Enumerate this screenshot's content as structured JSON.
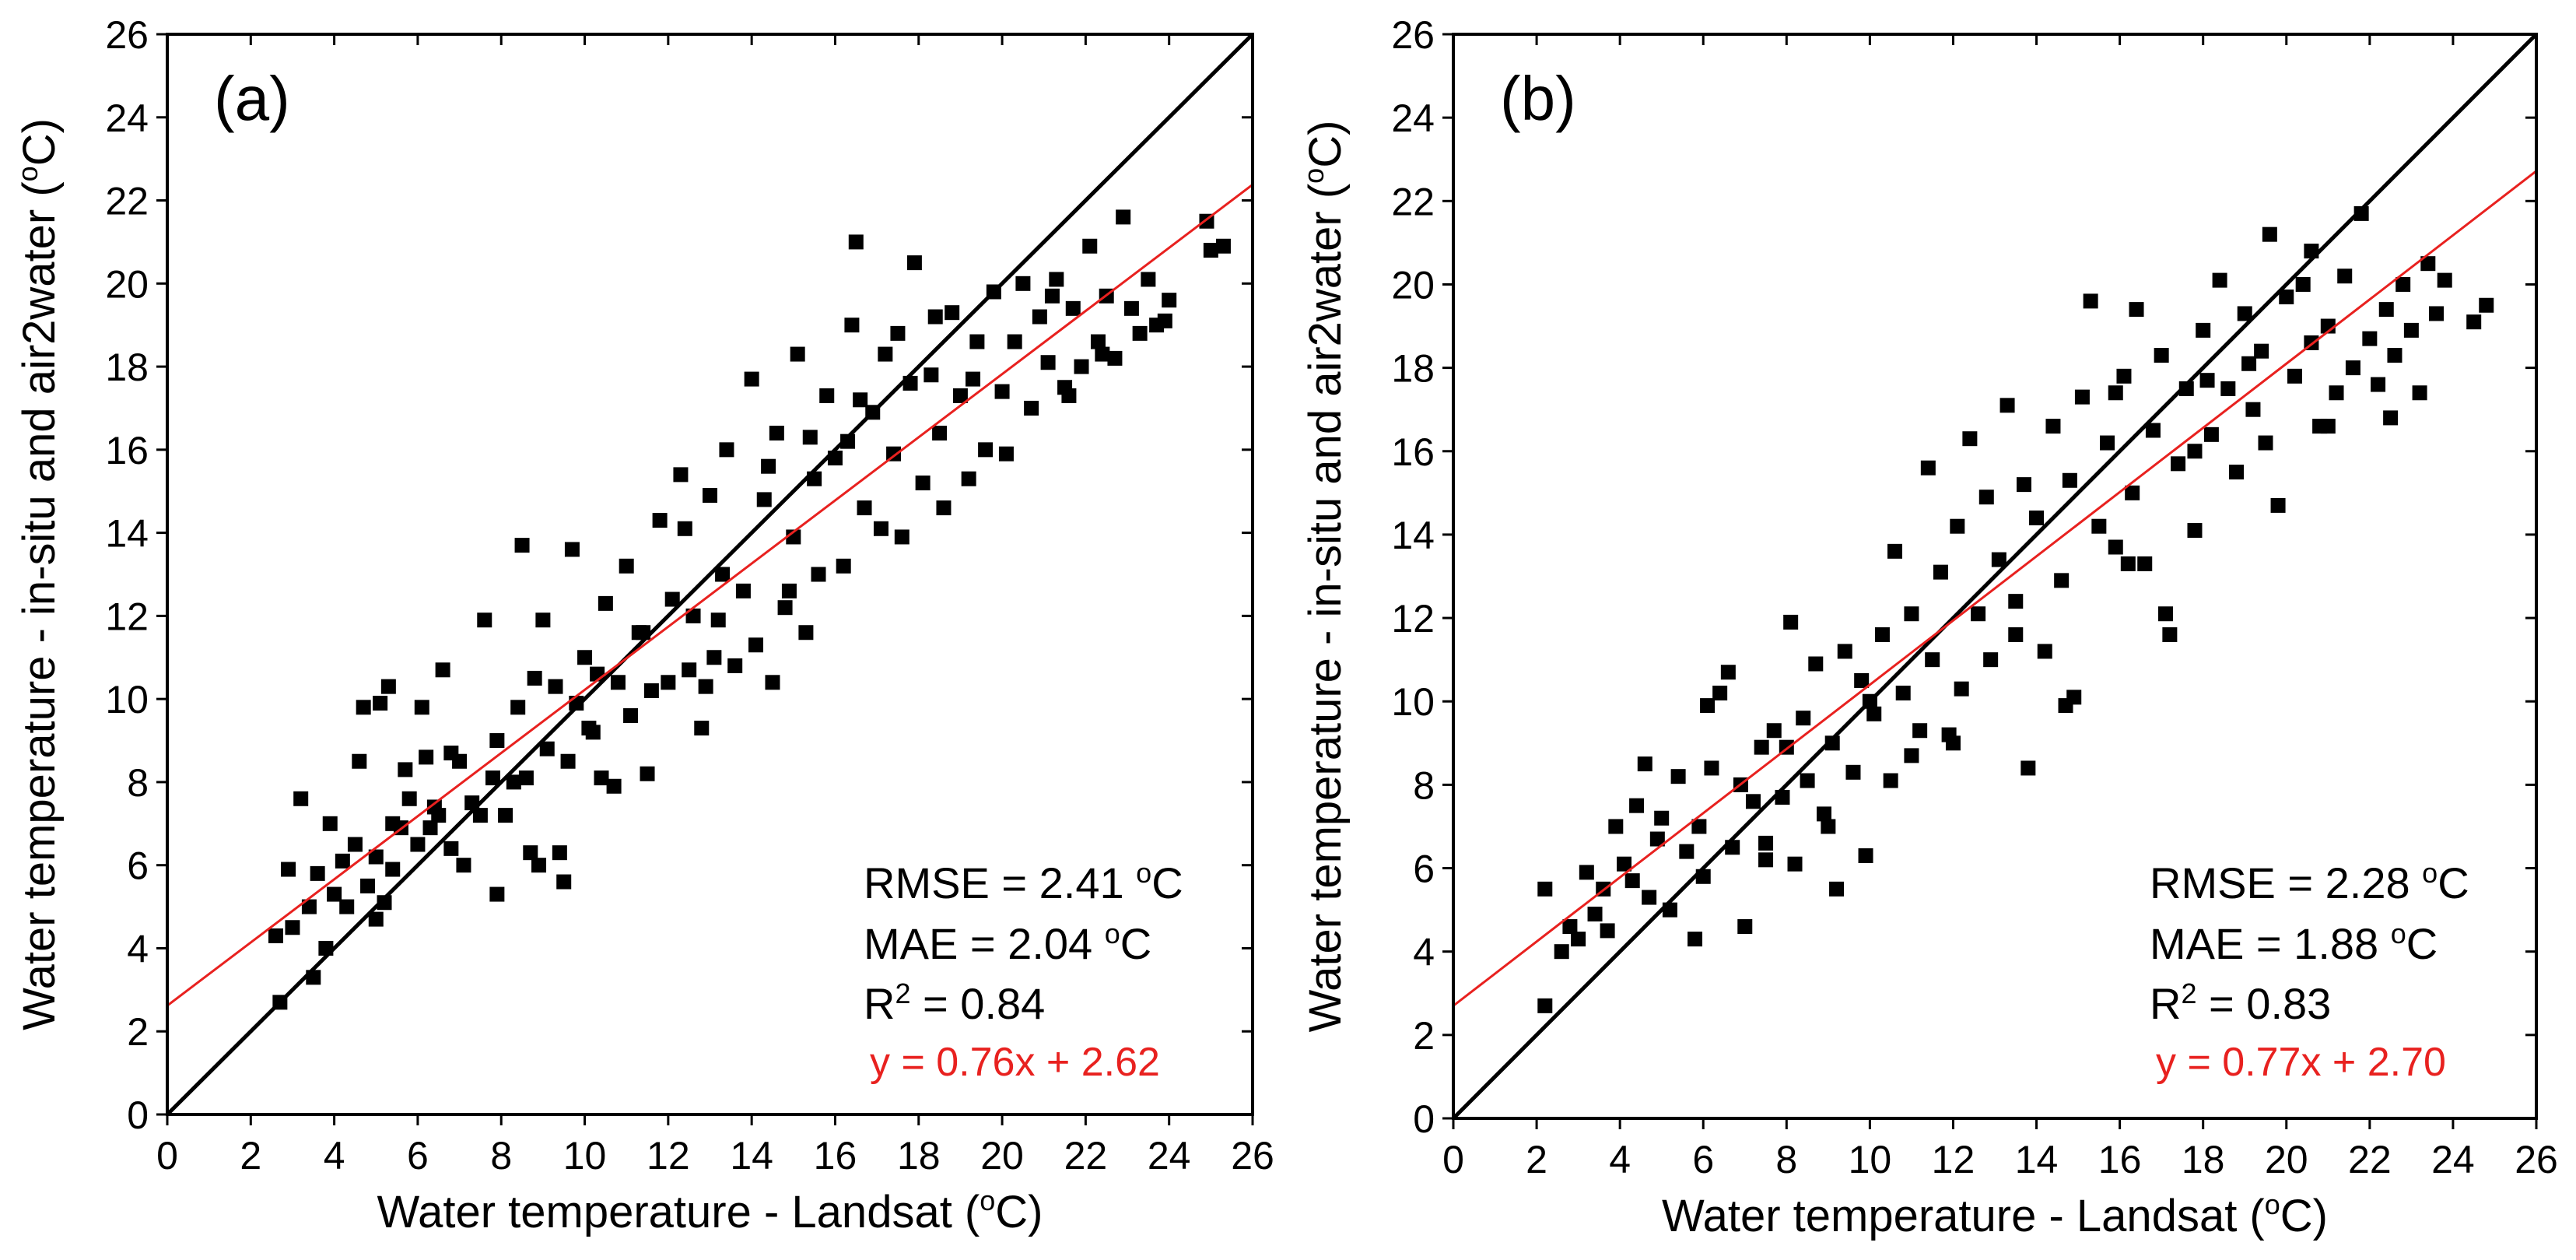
{
  "colors": {
    "points": "#000000",
    "one_to_one": "#000000",
    "fit": "#e8211f",
    "axes": "#000000"
  },
  "chart_data": [
    {
      "type": "scatter",
      "panel": "(a)",
      "xlabel_main": "Water temperature - Landsat (",
      "xlabel_sup": "o",
      "xlabel_end": "C)",
      "ylabel_main": "Water temperature - in-situ and air2water (",
      "ylabel_sup": "o",
      "ylabel_end": "C)",
      "xlim": [
        0,
        26
      ],
      "ylim": [
        0,
        26
      ],
      "xticks": [
        "0",
        "2",
        "4",
        "6",
        "8",
        "10",
        "12",
        "14",
        "16",
        "18",
        "20",
        "22",
        "24",
        "26"
      ],
      "yticks": [
        "0",
        "2",
        "4",
        "6",
        "8",
        "10",
        "12",
        "14",
        "16",
        "18",
        "20",
        "22",
        "24",
        "26"
      ],
      "one_to_one_line": {
        "slope": 1,
        "intercept": 0
      },
      "fit_line": {
        "slope": 0.76,
        "intercept": 2.62
      },
      "stats": {
        "rmse_text": "RMSE = 2.41 ",
        "rmse_sup": "o",
        "rmse_unit": "C",
        "mae_text": "MAE = 2.04 ",
        "mae_sup": "o",
        "mae_unit": "C",
        "r2_label": "R",
        "r2_sup": "2",
        "r2_value": " = 0.84",
        "equation": "y = 0.76x + 2.62"
      },
      "points": [
        [
          2.6,
          4.3
        ],
        [
          2.7,
          2.7
        ],
        [
          2.9,
          5.9
        ],
        [
          3.0,
          4.5
        ],
        [
          3.2,
          7.6
        ],
        [
          3.4,
          5.0
        ],
        [
          3.5,
          3.3
        ],
        [
          3.6,
          5.8
        ],
        [
          3.8,
          4.0
        ],
        [
          3.9,
          7.0
        ],
        [
          4.0,
          5.3
        ],
        [
          4.2,
          6.1
        ],
        [
          4.3,
          5.0
        ],
        [
          4.5,
          6.5
        ],
        [
          4.6,
          8.5
        ],
        [
          4.7,
          9.8
        ],
        [
          4.8,
          5.5
        ],
        [
          5.0,
          4.7
        ],
        [
          5.0,
          6.2
        ],
        [
          5.1,
          9.9
        ],
        [
          5.2,
          5.1
        ],
        [
          5.3,
          10.3
        ],
        [
          5.4,
          7.0
        ],
        [
          5.6,
          6.9
        ],
        [
          5.7,
          8.3
        ],
        [
          5.8,
          7.6
        ],
        [
          6.0,
          6.5
        ],
        [
          6.1,
          9.8
        ],
        [
          6.2,
          8.6
        ],
        [
          6.3,
          6.9
        ],
        [
          6.5,
          7.2
        ],
        [
          6.6,
          10.7
        ],
        [
          6.8,
          6.4
        ],
        [
          7.0,
          8.5
        ],
        [
          7.1,
          6.0
        ],
        [
          7.3,
          7.5
        ],
        [
          7.5,
          7.2
        ],
        [
          7.6,
          11.9
        ],
        [
          7.8,
          8.1
        ],
        [
          7.9,
          9.0
        ],
        [
          8.1,
          7.2
        ],
        [
          8.3,
          8.0
        ],
        [
          8.4,
          9.8
        ],
        [
          8.5,
          13.7
        ],
        [
          8.7,
          6.3
        ],
        [
          8.8,
          10.5
        ],
        [
          9.0,
          11.9
        ],
        [
          9.1,
          8.8
        ],
        [
          9.3,
          10.3
        ],
        [
          9.4,
          6.3
        ],
        [
          9.6,
          8.5
        ],
        [
          9.7,
          13.6
        ],
        [
          9.8,
          9.9
        ],
        [
          10.0,
          11.0
        ],
        [
          10.1,
          9.3
        ],
        [
          10.3,
          10.6
        ],
        [
          10.4,
          8.1
        ],
        [
          10.5,
          12.3
        ],
        [
          10.7,
          7.9
        ],
        [
          10.8,
          10.4
        ],
        [
          11.0,
          13.2
        ],
        [
          11.1,
          9.6
        ],
        [
          11.3,
          11.6
        ],
        [
          11.5,
          8.2
        ],
        [
          11.6,
          10.2
        ],
        [
          11.8,
          14.3
        ],
        [
          12.0,
          10.4
        ],
        [
          12.1,
          12.4
        ],
        [
          12.3,
          15.4
        ],
        [
          12.5,
          10.7
        ],
        [
          12.6,
          12.0
        ],
        [
          12.8,
          9.3
        ],
        [
          13.0,
          14.9
        ],
        [
          13.1,
          11.0
        ],
        [
          13.3,
          13.0
        ],
        [
          13.4,
          16.0
        ],
        [
          13.6,
          10.8
        ],
        [
          13.8,
          12.6
        ],
        [
          14.0,
          17.7
        ],
        [
          14.1,
          11.3
        ],
        [
          14.3,
          14.8
        ],
        [
          14.5,
          10.4
        ],
        [
          14.6,
          16.4
        ],
        [
          14.8,
          12.2
        ],
        [
          15.0,
          13.9
        ],
        [
          15.1,
          18.3
        ],
        [
          15.3,
          11.6
        ],
        [
          15.5,
          15.3
        ],
        [
          15.6,
          13.0
        ],
        [
          15.8,
          17.3
        ],
        [
          16.0,
          15.8
        ],
        [
          16.2,
          13.2
        ],
        [
          16.4,
          19.0
        ],
        [
          16.5,
          21.0
        ],
        [
          16.7,
          14.6
        ],
        [
          16.9,
          16.9
        ],
        [
          17.1,
          14.1
        ],
        [
          17.2,
          18.3
        ],
        [
          17.4,
          15.9
        ],
        [
          17.6,
          13.9
        ],
        [
          17.8,
          17.6
        ],
        [
          17.9,
          20.5
        ],
        [
          18.1,
          15.2
        ],
        [
          18.3,
          17.8
        ],
        [
          18.5,
          16.4
        ],
        [
          18.6,
          14.6
        ],
        [
          18.8,
          19.3
        ],
        [
          19.0,
          17.3
        ],
        [
          19.2,
          15.3
        ],
        [
          19.4,
          18.6
        ],
        [
          19.6,
          16.0
        ],
        [
          19.8,
          19.8
        ],
        [
          20.0,
          17.4
        ],
        [
          20.1,
          15.9
        ],
        [
          20.3,
          18.6
        ],
        [
          20.5,
          20.0
        ],
        [
          20.7,
          17.0
        ],
        [
          20.9,
          19.2
        ],
        [
          21.1,
          18.1
        ],
        [
          21.3,
          20.1
        ],
        [
          21.5,
          17.5
        ],
        [
          21.7,
          19.4
        ],
        [
          21.9,
          18.0
        ],
        [
          22.1,
          20.9
        ],
        [
          22.3,
          18.6
        ],
        [
          22.5,
          19.7
        ],
        [
          22.7,
          18.2
        ],
        [
          22.9,
          21.6
        ],
        [
          23.1,
          19.4
        ],
        [
          23.3,
          18.8
        ],
        [
          23.5,
          20.1
        ],
        [
          23.7,
          19.0
        ],
        [
          24.0,
          19.6
        ],
        [
          24.9,
          21.5
        ],
        [
          25.0,
          20.8
        ],
        [
          25.3,
          20.9
        ],
        [
          6.8,
          8.7
        ],
        [
          8.9,
          6.0
        ],
        [
          9.5,
          5.6
        ],
        [
          7.9,
          5.3
        ],
        [
          11.4,
          11.6
        ],
        [
          12.4,
          14.1
        ],
        [
          13.2,
          11.9
        ],
        [
          14.4,
          15.6
        ],
        [
          15.4,
          16.3
        ],
        [
          16.6,
          17.2
        ],
        [
          17.5,
          18.8
        ],
        [
          18.4,
          19.2
        ],
        [
          19.3,
          17.7
        ],
        [
          21.2,
          19.7
        ],
        [
          21.6,
          17.3
        ],
        [
          22.4,
          18.3
        ],
        [
          23.9,
          19.1
        ],
        [
          5.4,
          5.9
        ],
        [
          6.4,
          7.4
        ],
        [
          8.6,
          8.1
        ],
        [
          10.2,
          9.2
        ],
        [
          12.9,
          10.3
        ],
        [
          14.9,
          12.6
        ],
        [
          16.3,
          16.2
        ]
      ]
    },
    {
      "type": "scatter",
      "panel": "(b)",
      "xlabel_main": "Water temperature - Landsat (",
      "xlabel_sup": "o",
      "xlabel_end": "C)",
      "ylabel_main": "Water temperature - in-situ and air2water (",
      "ylabel_sup": "o",
      "ylabel_end": "C)",
      "xlim": [
        0,
        26
      ],
      "ylim": [
        0,
        26
      ],
      "xticks": [
        "0",
        "2",
        "4",
        "6",
        "8",
        "10",
        "12",
        "14",
        "16",
        "18",
        "20",
        "22",
        "24",
        "26"
      ],
      "yticks": [
        "0",
        "2",
        "4",
        "6",
        "8",
        "10",
        "12",
        "14",
        "16",
        "18",
        "20",
        "22",
        "24",
        "26"
      ],
      "one_to_one_line": {
        "slope": 1,
        "intercept": 0
      },
      "fit_line": {
        "slope": 0.77,
        "intercept": 2.7
      },
      "stats": {
        "rmse_text": "RMSE = 2.28 ",
        "rmse_sup": "o",
        "rmse_unit": "C",
        "mae_text": "MAE = 1.88 ",
        "mae_sup": "o",
        "mae_unit": "C",
        "r2_label": "R",
        "r2_sup": "2",
        "r2_value": " = 0.83",
        "equation": "y = 0.77x + 2.70"
      },
      "points": [
        [
          2.2,
          2.7
        ],
        [
          2.2,
          5.5
        ],
        [
          2.6,
          4.0
        ],
        [
          2.8,
          4.6
        ],
        [
          3.0,
          4.3
        ],
        [
          3.2,
          5.9
        ],
        [
          3.4,
          4.9
        ],
        [
          3.6,
          5.5
        ],
        [
          3.7,
          4.5
        ],
        [
          3.9,
          7.0
        ],
        [
          4.1,
          6.1
        ],
        [
          4.3,
          5.7
        ],
        [
          4.4,
          7.5
        ],
        [
          4.6,
          8.5
        ],
        [
          4.7,
          5.3
        ],
        [
          4.9,
          6.7
        ],
        [
          5.0,
          7.2
        ],
        [
          5.2,
          5.0
        ],
        [
          5.4,
          8.2
        ],
        [
          5.6,
          6.4
        ],
        [
          5.8,
          4.3
        ],
        [
          5.9,
          7.0
        ],
        [
          6.1,
          9.9
        ],
        [
          6.2,
          8.4
        ],
        [
          6.4,
          10.2
        ],
        [
          6.6,
          10.7
        ],
        [
          6.7,
          6.5
        ],
        [
          6.9,
          8.0
        ],
        [
          7.0,
          4.6
        ],
        [
          7.2,
          7.6
        ],
        [
          7.4,
          8.9
        ],
        [
          7.5,
          6.2
        ],
        [
          7.7,
          9.3
        ],
        [
          7.9,
          7.7
        ],
        [
          8.1,
          11.9
        ],
        [
          8.2,
          6.1
        ],
        [
          8.4,
          9.6
        ],
        [
          8.5,
          8.1
        ],
        [
          8.7,
          10.9
        ],
        [
          8.9,
          7.3
        ],
        [
          9.1,
          9.0
        ],
        [
          9.2,
          5.5
        ],
        [
          9.4,
          11.2
        ],
        [
          9.6,
          8.3
        ],
        [
          9.8,
          10.5
        ],
        [
          9.9,
          6.3
        ],
        [
          10.1,
          9.7
        ],
        [
          10.3,
          11.6
        ],
        [
          10.5,
          8.1
        ],
        [
          10.6,
          13.6
        ],
        [
          10.8,
          10.2
        ],
        [
          11.0,
          12.1
        ],
        [
          11.2,
          9.3
        ],
        [
          11.4,
          15.6
        ],
        [
          11.5,
          11.0
        ],
        [
          11.7,
          13.1
        ],
        [
          11.9,
          9.2
        ],
        [
          12.1,
          14.2
        ],
        [
          12.2,
          10.3
        ],
        [
          12.4,
          16.3
        ],
        [
          12.6,
          12.1
        ],
        [
          12.8,
          14.9
        ],
        [
          12.9,
          11.0
        ],
        [
          13.1,
          13.4
        ],
        [
          13.3,
          17.1
        ],
        [
          13.5,
          12.4
        ],
        [
          13.7,
          15.2
        ],
        [
          13.8,
          8.4
        ],
        [
          14.0,
          14.4
        ],
        [
          14.2,
          11.2
        ],
        [
          14.4,
          16.6
        ],
        [
          14.6,
          12.9
        ],
        [
          14.8,
          15.3
        ],
        [
          14.9,
          10.1
        ],
        [
          15.1,
          17.3
        ],
        [
          15.3,
          19.6
        ],
        [
          15.5,
          14.2
        ],
        [
          15.7,
          16.2
        ],
        [
          15.9,
          13.7
        ],
        [
          16.1,
          17.8
        ],
        [
          16.3,
          15.0
        ],
        [
          16.4,
          19.4
        ],
        [
          16.6,
          13.3
        ],
        [
          16.8,
          16.5
        ],
        [
          17.0,
          18.3
        ],
        [
          17.2,
          11.6
        ],
        [
          17.4,
          15.7
        ],
        [
          17.6,
          17.5
        ],
        [
          17.8,
          14.1
        ],
        [
          18.0,
          18.9
        ],
        [
          18.2,
          16.4
        ],
        [
          18.4,
          20.1
        ],
        [
          18.6,
          17.5
        ],
        [
          18.8,
          15.5
        ],
        [
          19.0,
          19.3
        ],
        [
          19.2,
          17.0
        ],
        [
          19.4,
          18.4
        ],
        [
          19.6,
          21.2
        ],
        [
          19.8,
          14.7
        ],
        [
          20.0,
          19.7
        ],
        [
          20.2,
          17.8
        ],
        [
          20.4,
          20.0
        ],
        [
          20.6,
          18.6
        ],
        [
          20.8,
          16.6
        ],
        [
          21.0,
          19.0
        ],
        [
          21.2,
          17.4
        ],
        [
          21.4,
          20.2
        ],
        [
          21.6,
          18.0
        ],
        [
          21.8,
          21.7
        ],
        [
          22.0,
          18.7
        ],
        [
          22.2,
          17.6
        ],
        [
          22.4,
          19.4
        ],
        [
          22.6,
          18.3
        ],
        [
          22.8,
          20.0
        ],
        [
          23.0,
          18.9
        ],
        [
          23.2,
          17.4
        ],
        [
          23.4,
          20.5
        ],
        [
          23.6,
          19.3
        ],
        [
          23.8,
          20.1
        ],
        [
          24.5,
          19.1
        ],
        [
          24.8,
          19.5
        ],
        [
          22.5,
          16.8
        ],
        [
          21.0,
          16.6
        ],
        [
          13.5,
          11.6
        ],
        [
          14.7,
          9.9
        ],
        [
          16.2,
          13.3
        ],
        [
          17.1,
          12.1
        ],
        [
          18.1,
          17.7
        ],
        [
          19.5,
          16.2
        ],
        [
          20.6,
          20.8
        ],
        [
          12.0,
          9.0
        ],
        [
          11.0,
          8.7
        ],
        [
          10.0,
          10.0
        ],
        [
          8.0,
          8.9
        ],
        [
          6.0,
          5.8
        ],
        [
          7.5,
          6.6
        ],
        [
          9.0,
          7.0
        ],
        [
          15.9,
          17.4
        ],
        [
          17.8,
          16.0
        ],
        [
          19.1,
          18.1
        ]
      ]
    }
  ]
}
